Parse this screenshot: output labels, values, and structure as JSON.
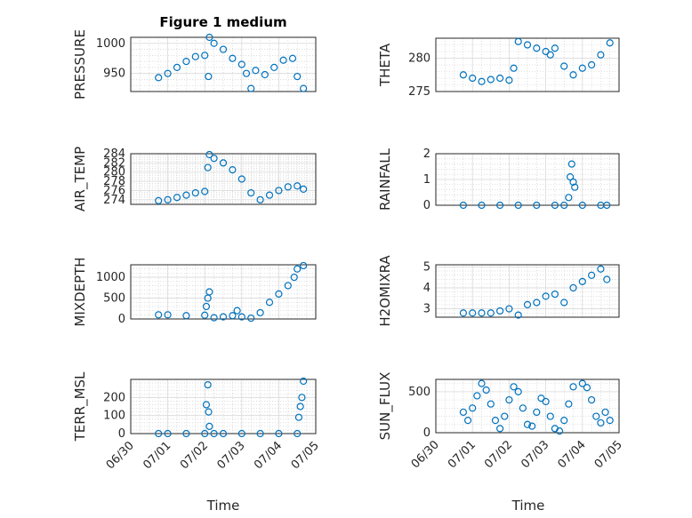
{
  "figure": {
    "title": "Figure 1 medium",
    "xlabel": "Time",
    "date_tick_labels": [
      "06/30",
      "07/01",
      "07/02",
      "07/03",
      "07/04",
      "07/05"
    ]
  },
  "colors": {
    "marker": "#0072bd",
    "axes": "#262626",
    "grid": "#d9d9d9"
  },
  "chart_data": [
    {
      "type": "scatter",
      "ylabel": "PRESSURE",
      "xlim": [
        "06/30",
        "07/05"
      ],
      "ylim": [
        920,
        1010
      ],
      "yticks": [
        950,
        1000
      ],
      "grid": true,
      "x": [
        "06/30 18:00",
        "07/01 00:00",
        "07/01 06:00",
        "07/01 12:00",
        "07/01 18:00",
        "07/02 00:00",
        "07/02 02:24",
        "07/02 03:00",
        "07/02 06:00",
        "07/02 12:00",
        "07/02 18:00",
        "07/03 00:00",
        "07/03 03:00",
        "07/03 06:00",
        "07/03 09:00",
        "07/03 15:00",
        "07/03 21:00",
        "07/04 03:00",
        "07/04 09:00",
        "07/04 12:00",
        "07/04 16:00"
      ],
      "y": [
        943,
        950,
        960,
        970,
        978,
        980,
        945,
        1010,
        1000,
        990,
        975,
        965,
        950,
        925,
        955,
        948,
        960,
        972,
        975,
        945,
        925
      ]
    },
    {
      "type": "scatter",
      "ylabel": "THETA",
      "xlim": [
        "06/30",
        "07/05"
      ],
      "ylim": [
        275,
        283
      ],
      "yticks": [
        275,
        280
      ],
      "grid": true,
      "x": [
        "06/30 18:00",
        "07/01 00:00",
        "07/01 06:00",
        "07/01 12:00",
        "07/01 18:00",
        "07/02 00:00",
        "07/02 03:00",
        "07/02 06:00",
        "07/02 12:00",
        "07/02 18:00",
        "07/03 00:00",
        "07/03 03:00",
        "07/03 06:00",
        "07/03 12:00",
        "07/03 18:00",
        "07/04 00:00",
        "07/04 06:00",
        "07/04 12:00",
        "07/04 18:00"
      ],
      "y": [
        277.5,
        277,
        276.5,
        276.8,
        277,
        276.7,
        278.5,
        282.5,
        282,
        281.5,
        281,
        280.5,
        281.5,
        278.8,
        277.5,
        278.5,
        279,
        280.5,
        282.3
      ]
    },
    {
      "type": "scatter",
      "ylabel": "AIR_TEMP",
      "xlim": [
        "06/30",
        "07/05"
      ],
      "ylim": [
        273,
        284
      ],
      "yticks": [
        274,
        276,
        278,
        280,
        282,
        284
      ],
      "grid": true,
      "x": [
        "06/30 18:00",
        "07/01 00:00",
        "07/01 06:00",
        "07/01 12:00",
        "07/01 18:00",
        "07/02 00:00",
        "07/02 02:00",
        "07/02 03:00",
        "07/02 06:00",
        "07/02 12:00",
        "07/02 18:00",
        "07/03 00:00",
        "07/03 06:00",
        "07/03 12:00",
        "07/03 18:00",
        "07/04 00:00",
        "07/04 06:00",
        "07/04 12:00",
        "07/04 16:00"
      ],
      "y": [
        273.8,
        274,
        274.5,
        275,
        275.5,
        275.8,
        281,
        283.8,
        283,
        282,
        280.5,
        278.5,
        275.5,
        274,
        275,
        276,
        276.8,
        277,
        276.3
      ]
    },
    {
      "type": "scatter",
      "ylabel": "RAINFALL",
      "xlim": [
        "06/30",
        "07/05"
      ],
      "ylim": [
        0,
        2
      ],
      "yticks": [
        0,
        1,
        2
      ],
      "grid": true,
      "x": [
        "06/30 18:00",
        "07/01 06:00",
        "07/01 18:00",
        "07/02 06:00",
        "07/02 18:00",
        "07/03 06:00",
        "07/03 12:00",
        "07/03 15:00",
        "07/03 16:00",
        "07/03 17:00",
        "07/03 18:00",
        "07/03 19:00",
        "07/04 00:00",
        "07/04 12:00",
        "07/04 16:00"
      ],
      "y": [
        0,
        0,
        0,
        0,
        0,
        0,
        0,
        0.3,
        1.1,
        1.6,
        0.9,
        0.7,
        0,
        0,
        0
      ]
    },
    {
      "type": "scatter",
      "ylabel": "MIXDEPTH",
      "xlim": [
        "06/30",
        "07/05"
      ],
      "ylim": [
        0,
        1300
      ],
      "yticks": [
        0,
        500,
        1000
      ],
      "grid": true,
      "x": [
        "06/30 18:00",
        "07/01 00:00",
        "07/01 12:00",
        "07/02 00:00",
        "07/02 01:00",
        "07/02 02:00",
        "07/02 03:00",
        "07/02 06:00",
        "07/02 12:00",
        "07/02 18:00",
        "07/02 21:00",
        "07/03 00:00",
        "07/03 06:00",
        "07/03 12:00",
        "07/03 18:00",
        "07/04 00:00",
        "07/04 06:00",
        "07/04 10:00",
        "07/04 12:00",
        "07/04 16:00"
      ],
      "y": [
        100,
        100,
        80,
        90,
        300,
        500,
        650,
        30,
        50,
        80,
        200,
        50,
        20,
        150,
        400,
        600,
        800,
        1000,
        1200,
        1280
      ]
    },
    {
      "type": "scatter",
      "ylabel": "H2OMIXRA",
      "xlim": [
        "06/30",
        "07/05"
      ],
      "ylim": [
        2.6,
        5.1
      ],
      "yticks": [
        3,
        4,
        5
      ],
      "grid": true,
      "x": [
        "06/30 18:00",
        "07/01 00:00",
        "07/01 06:00",
        "07/01 12:00",
        "07/01 18:00",
        "07/02 00:00",
        "07/02 06:00",
        "07/02 12:00",
        "07/02 18:00",
        "07/03 00:00",
        "07/03 06:00",
        "07/03 12:00",
        "07/03 18:00",
        "07/04 00:00",
        "07/04 06:00",
        "07/04 12:00",
        "07/04 16:00"
      ],
      "y": [
        2.8,
        2.8,
        2.8,
        2.8,
        2.9,
        3,
        2.7,
        3.2,
        3.3,
        3.6,
        3.7,
        3.3,
        4,
        4.3,
        4.6,
        4.9,
        4.4
      ]
    },
    {
      "type": "scatter",
      "ylabel": "TERR_MSL",
      "xlim": [
        "06/30",
        "07/05"
      ],
      "ylim": [
        0,
        300
      ],
      "yticks": [
        0,
        100,
        200
      ],
      "grid": true,
      "x": [
        "06/30 18:00",
        "07/01 00:00",
        "07/01 12:00",
        "07/02 00:00",
        "07/02 01:00",
        "07/02 02:00",
        "07/02 02:30",
        "07/02 03:00",
        "07/02 06:00",
        "07/02 12:00",
        "07/03 00:00",
        "07/03 12:00",
        "07/04 00:00",
        "07/04 12:00",
        "07/04 13:00",
        "07/04 14:00",
        "07/04 15:00",
        "07/04 16:00"
      ],
      "y": [
        0,
        0,
        0,
        0,
        160,
        270,
        120,
        40,
        0,
        0,
        0,
        0,
        0,
        0,
        90,
        150,
        200,
        290
      ]
    },
    {
      "type": "scatter",
      "ylabel": "SUN_FLUX",
      "xlim": [
        "06/30",
        "07/05"
      ],
      "ylim": [
        0,
        650
      ],
      "yticks": [
        0,
        500
      ],
      "grid": true,
      "x": [
        "06/30 18:00",
        "06/30 21:00",
        "07/01 00:00",
        "07/01 03:00",
        "07/01 06:00",
        "07/01 09:00",
        "07/01 12:00",
        "07/01 15:00",
        "07/01 18:00",
        "07/01 21:00",
        "07/02 00:00",
        "07/02 03:00",
        "07/02 06:00",
        "07/02 09:00",
        "07/02 12:00",
        "07/02 15:00",
        "07/02 18:00",
        "07/02 21:00",
        "07/03 00:00",
        "07/03 03:00",
        "07/03 06:00",
        "07/03 09:00",
        "07/03 12:00",
        "07/03 15:00",
        "07/03 18:00",
        "07/04 00:00",
        "07/04 03:00",
        "07/04 06:00",
        "07/04 09:00",
        "07/04 12:00",
        "07/04 15:00",
        "07/04 18:00"
      ],
      "y": [
        250,
        150,
        300,
        450,
        600,
        520,
        350,
        150,
        50,
        200,
        400,
        560,
        500,
        300,
        100,
        80,
        250,
        420,
        380,
        200,
        50,
        20,
        150,
        350,
        560,
        600,
        550,
        400,
        200,
        120,
        250,
        150
      ]
    }
  ]
}
